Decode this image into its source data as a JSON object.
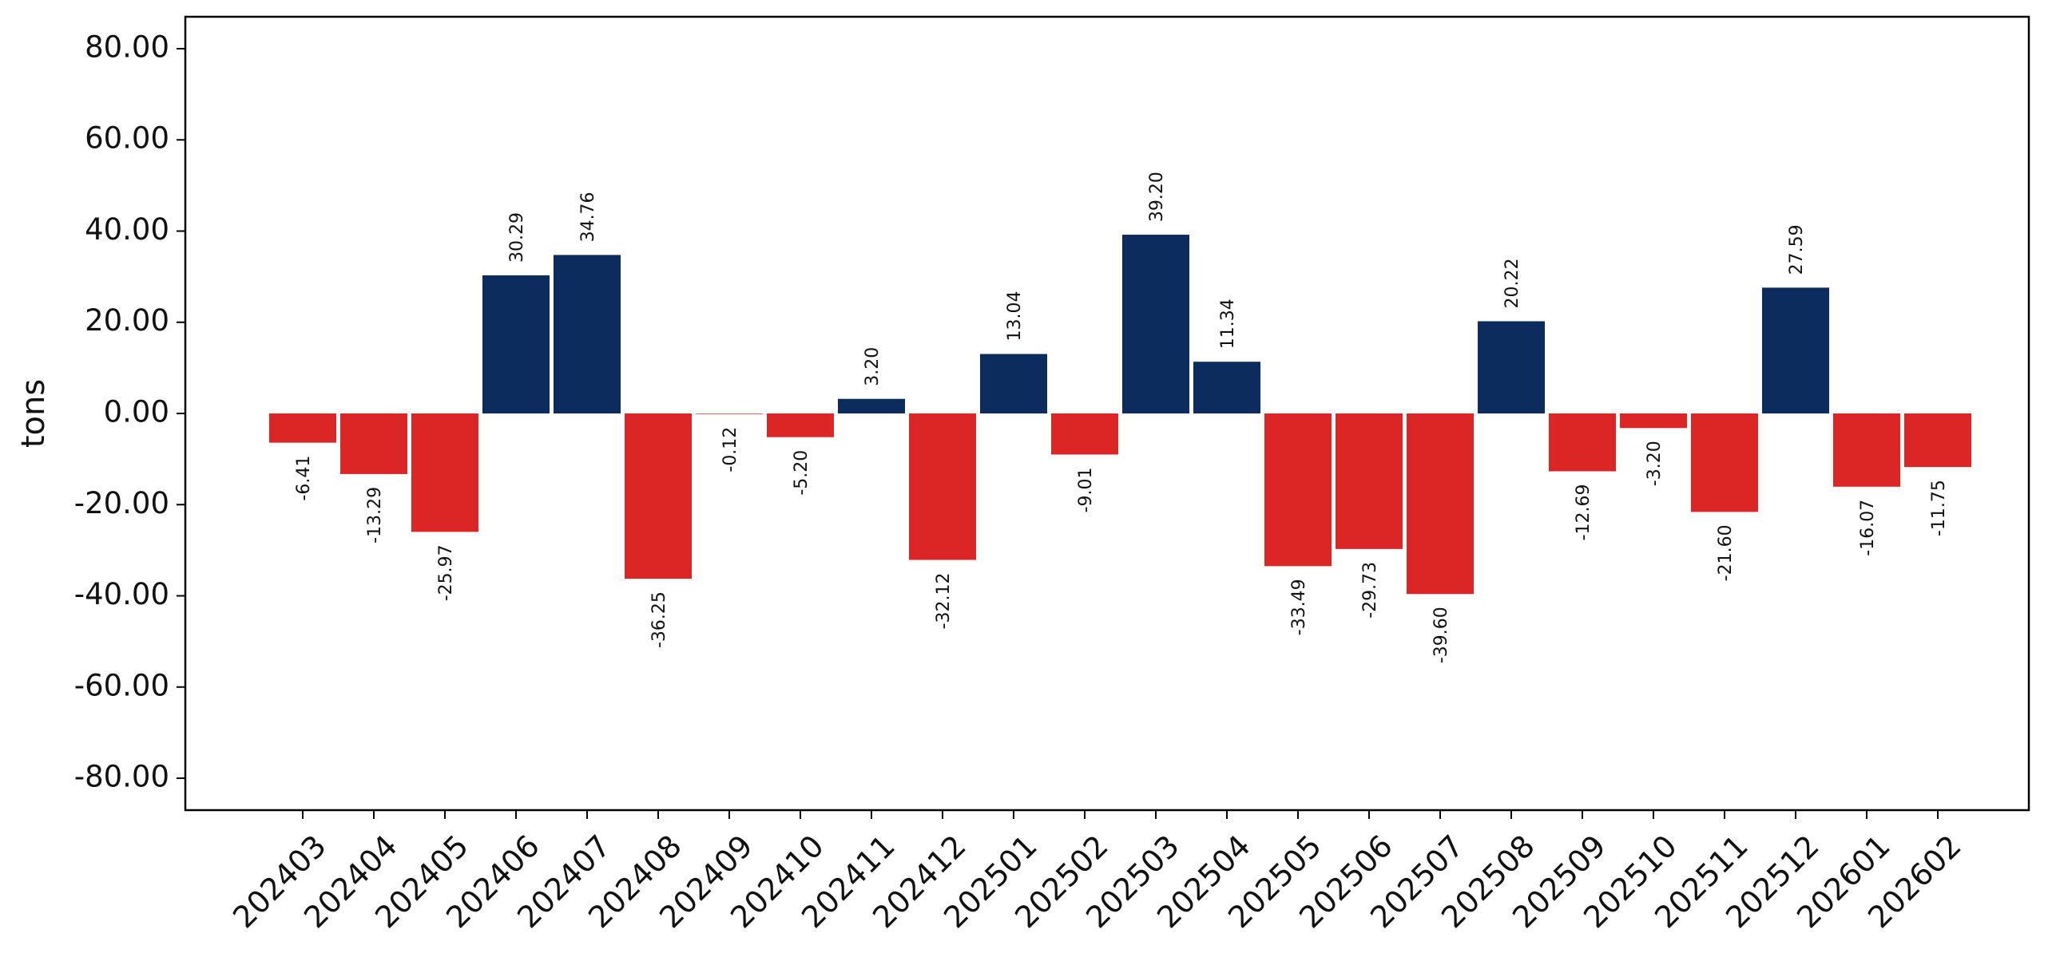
{
  "chart_data": {
    "type": "bar",
    "ylabel": "tons",
    "ylim": [
      -87,
      87
    ],
    "yticks": [
      80,
      60,
      40,
      20,
      0,
      -20,
      -40,
      -60,
      -80
    ],
    "ytick_labels": [
      "80.00",
      "60.00",
      "40.00",
      "20.00",
      "0.00",
      "-20.00",
      "-40.00",
      "-60.00",
      "-80.00"
    ],
    "categories": [
      "202403",
      "202404",
      "202405",
      "202406",
      "202407",
      "202408",
      "202409",
      "202410",
      "202411",
      "202412",
      "202501",
      "202502",
      "202503",
      "202504",
      "202505",
      "202506",
      "202507",
      "202508",
      "202509",
      "202510",
      "202511",
      "202512",
      "202601",
      "202602"
    ],
    "values": [
      -6.41,
      -13.29,
      -25.97,
      30.29,
      34.76,
      -36.25,
      -0.12,
      -5.2,
      3.2,
      -32.12,
      13.04,
      -9.01,
      39.2,
      11.34,
      -33.49,
      -29.73,
      -39.6,
      20.22,
      -12.69,
      -3.2,
      -21.6,
      27.59,
      -16.07,
      -11.75
    ],
    "value_labels": [
      "-6.41",
      "-13.29",
      "-25.97",
      "30.29",
      "34.76",
      "-36.25",
      "-0.12",
      "-5.20",
      "3.20",
      "-32.12",
      "13.04",
      "-9.01",
      "39.20",
      "11.34",
      "-33.49",
      "-29.73",
      "-39.60",
      "20.22",
      "-12.69",
      "-3.20",
      "-21.60",
      "27.59",
      "-16.07",
      "-11.75"
    ],
    "colors": {
      "positive": "#0c2c5e",
      "negative": "#dc2626"
    },
    "grid": false
  }
}
